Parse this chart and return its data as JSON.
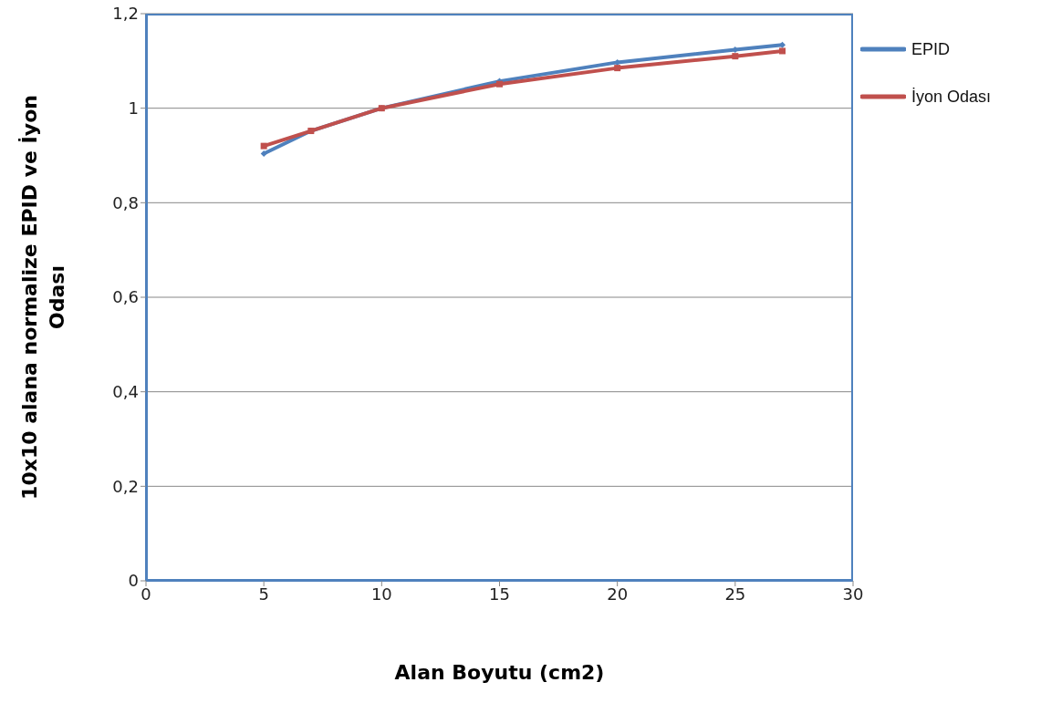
{
  "chart_data": {
    "type": "line",
    "xlabel": "Alan Boyutu (cm2)",
    "ylabel": "10x10 alana normalize EPID ve İyon Odası",
    "x": [
      5,
      7,
      10,
      15,
      20,
      25,
      27
    ],
    "series": [
      {
        "name": "EPID",
        "color": "#4f81bd",
        "marker": "diamond",
        "values": [
          0.904,
          0.952,
          1.0,
          1.057,
          1.097,
          1.124,
          1.134
        ]
      },
      {
        "name": "İyon Odası",
        "color": "#c0504d",
        "marker": "square",
        "values": [
          0.92,
          0.952,
          1.0,
          1.051,
          1.085,
          1.11,
          1.121
        ]
      }
    ],
    "xlim": [
      0,
      30
    ],
    "xticks": [
      0,
      5,
      10,
      15,
      20,
      25,
      30
    ],
    "ylim": [
      0,
      1.2
    ],
    "yticks": [
      0,
      {
        "value": 0.2,
        "label": "0,2"
      },
      {
        "value": 0.4,
        "label": "0,4"
      },
      {
        "value": 0.6,
        "label": "0,6"
      },
      {
        "value": 0.8,
        "label": "0,8"
      },
      1,
      {
        "value": 1.2,
        "label": "1,2"
      }
    ],
    "grid": "y",
    "legend": "right"
  }
}
